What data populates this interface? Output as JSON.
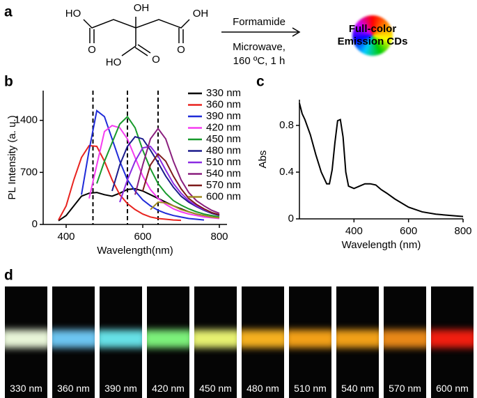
{
  "panel_a": {
    "label": "a",
    "scheme_labels": [
      "OH",
      "HO",
      "O",
      "OH",
      "O",
      "HO",
      "O"
    ],
    "reagent": "Formamide",
    "conditions": [
      "Microwave,",
      "160 ºC, 1 h"
    ],
    "product": [
      "Full-color",
      "Emission CDs"
    ]
  },
  "chart_data": [
    {
      "type": "line",
      "panel_label": "b",
      "x_label": "Wavelength(nm)",
      "y_label": "PL Intensity (a. u.)",
      "x": [
        380,
        400,
        420,
        440,
        460,
        480,
        500,
        520,
        540,
        560,
        580,
        600,
        620,
        640,
        660,
        680,
        700,
        720,
        740,
        760,
        780,
        800
      ],
      "xlim": [
        340,
        820
      ],
      "xticks": [
        400,
        600,
        800
      ],
      "ylim": [
        0,
        1800
      ],
      "yticks": [
        0,
        700,
        1400
      ],
      "vlines": [
        470,
        560,
        640
      ],
      "legend": "upper right",
      "series": [
        {
          "name": "330 nm",
          "color": "#000000",
          "values": [
            50,
            120,
            250,
            380,
            420,
            430,
            400,
            380,
            420,
            470,
            480,
            450,
            400,
            350,
            300,
            250,
            210,
            170,
            140,
            120,
            100,
            90
          ]
        },
        {
          "name": "360 nm",
          "color": "#e8231f",
          "values": [
            60,
            250,
            600,
            900,
            1060,
            1050,
            850,
            600,
            400,
            280,
            200,
            140,
            100,
            80,
            70,
            60,
            55,
            null,
            null,
            null,
            null,
            null
          ]
        },
        {
          "name": "390 nm",
          "color": "#1f2bd8",
          "values": [
            null,
            null,
            null,
            400,
            1000,
            1530,
            1450,
            1150,
            850,
            600,
            450,
            330,
            250,
            190,
            150,
            120,
            100,
            80,
            70,
            60,
            null,
            null
          ]
        },
        {
          "name": "420 nm",
          "color": "#f53cf0",
          "values": [
            null,
            null,
            null,
            null,
            350,
            800,
            1250,
            1330,
            1300,
            1150,
            900,
            650,
            470,
            350,
            270,
            210,
            170,
            140,
            120,
            100,
            90,
            80
          ]
        },
        {
          "name": "450 nm",
          "color": "#179a2b",
          "values": [
            null,
            null,
            null,
            null,
            null,
            550,
            850,
            1100,
            1350,
            1450,
            1300,
            1000,
            750,
            550,
            420,
            320,
            260,
            210,
            170,
            140,
            120,
            100
          ]
        },
        {
          "name": "480 nm",
          "color": "#1b1b8c",
          "values": [
            null,
            null,
            null,
            null,
            null,
            null,
            null,
            450,
            800,
            1050,
            1180,
            1150,
            1000,
            830,
            650,
            500,
            380,
            300,
            240,
            190,
            150,
            120
          ]
        },
        {
          "name": "510 nm",
          "color": "#8b2be2",
          "values": [
            null,
            null,
            null,
            null,
            null,
            null,
            null,
            null,
            300,
            600,
            850,
            1030,
            1050,
            920,
            730,
            550,
            420,
            320,
            250,
            200,
            160,
            130
          ]
        },
        {
          "name": "540 nm",
          "color": "#8a1f7e",
          "values": [
            null,
            null,
            null,
            null,
            null,
            null,
            null,
            null,
            null,
            null,
            400,
            800,
            1150,
            1290,
            1150,
            850,
            600,
            430,
            320,
            250,
            190,
            150
          ]
        },
        {
          "name": "570 nm",
          "color": "#7d1a1a",
          "values": [
            null,
            null,
            null,
            null,
            null,
            null,
            null,
            null,
            null,
            null,
            null,
            450,
            800,
            950,
            850,
            650,
            480,
            350,
            270,
            210,
            160,
            130
          ]
        },
        {
          "name": "600 nm",
          "color": "#a08c22",
          "values": [
            null,
            null,
            null,
            null,
            null,
            null,
            null,
            null,
            null,
            null,
            null,
            null,
            200,
            300,
            290,
            250,
            200,
            170,
            140,
            120,
            100,
            90
          ]
        }
      ]
    },
    {
      "type": "line",
      "panel_label": "c",
      "x_label": "Wavelength (nm)",
      "y_label": "Abs",
      "x": [
        200,
        210,
        220,
        240,
        260,
        280,
        300,
        310,
        320,
        330,
        340,
        350,
        360,
        370,
        380,
        400,
        420,
        440,
        460,
        480,
        500,
        520,
        550,
        600,
        650,
        700,
        750,
        800
      ],
      "xlim": [
        200,
        800
      ],
      "xticks": [
        400,
        600,
        800
      ],
      "ylim": [
        0,
        1.02
      ],
      "yticks": [
        0,
        0.4,
        0.8
      ],
      "series": [
        {
          "name": "Abs",
          "color": "#000000",
          "values": [
            0.99,
            0.9,
            0.85,
            0.72,
            0.55,
            0.4,
            0.3,
            0.3,
            0.42,
            0.65,
            0.84,
            0.85,
            0.7,
            0.4,
            0.28,
            0.26,
            0.28,
            0.3,
            0.3,
            0.29,
            0.25,
            0.22,
            0.17,
            0.1,
            0.06,
            0.04,
            0.03,
            0.02
          ]
        }
      ]
    }
  ],
  "panel_d": {
    "label": "d",
    "images": [
      "330 nm",
      "360 nm",
      "390 nm",
      "420 nm",
      "450 nm",
      "480 nm",
      "510 nm",
      "540 nm",
      "570 nm",
      "600 nm"
    ]
  }
}
